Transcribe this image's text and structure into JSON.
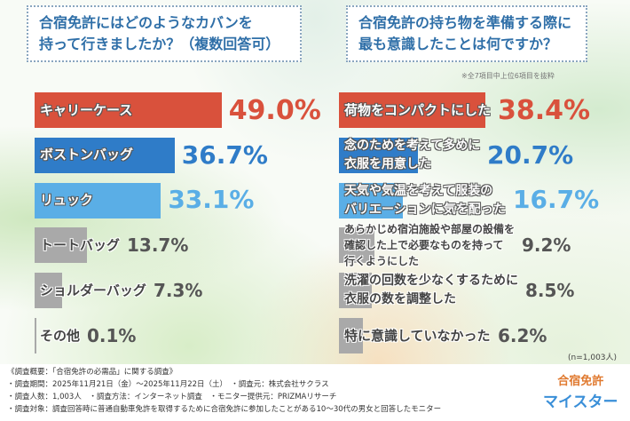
{
  "colors": {
    "top1": "#d9513c",
    "top2": "#2f7cc8",
    "top3": "#5aaee6",
    "rest": "#a9a9a9"
  },
  "chart_data": [
    {
      "type": "bar",
      "orientation": "horizontal",
      "title": "合宿免許にはどのようなカバンを持って行きましたか？（複数回答可）",
      "categories": [
        "キャリーケース",
        "ボストンバッグ",
        "リュック",
        "トートバッグ",
        "ショルダーバッグ",
        "その他"
      ],
      "values": [
        49.0,
        36.7,
        33.1,
        13.7,
        7.3,
        0.1
      ],
      "labels": [
        "49.0%",
        "36.7%",
        "33.1%",
        "13.7%",
        "7.3%",
        "0.1%"
      ],
      "unit": "%"
    },
    {
      "type": "bar",
      "orientation": "horizontal",
      "title": "合宿免許の持ち物を準備する際に最も意識したことは何ですか？",
      "note": "※全7項目中上位6項目を抜粋",
      "categories": [
        "荷物をコンパクトにした",
        "念のためを考えて多めに衣服を用意した",
        "天気や気温を考えて服装のバリエーションに気を配った",
        "あらかじめ宿泊施設や部屋の設備を確認した上で必要なものを持って行くようにした",
        "洗濯の回数を少なくするために衣服の数を調整した",
        "特に意識していなかった"
      ],
      "values": [
        38.4,
        20.7,
        16.7,
        9.2,
        8.5,
        6.2
      ],
      "labels": [
        "38.4%",
        "20.7%",
        "16.7%",
        "9.2%",
        "8.5%",
        "6.2%"
      ],
      "unit": "%",
      "n": "(n=1,003人)"
    }
  ],
  "display_lines": [
    [
      "キャリーケース",
      "ボストンバッグ",
      "リュック",
      "トートバッグ",
      "ショルダーバッグ",
      "その他"
    ],
    [
      "荷物をコンパクトにした",
      "念のためを考えて多めに\n衣服を用意した",
      "天気や気温を考えて服装の\nバリエーションに気を配った",
      "あらかじめ宿泊施設や部屋の設備を\n確認した上で必要なものを持って\n行くようにした",
      "洗濯の回数を少なくするために\n衣服の数を調整した",
      "特に意識していなかった"
    ]
  ],
  "q1_line1": "合宿免許にはどのようなカバンを",
  "q1_line2": "持って行きましたか？（複数回答可）",
  "q2_line1": "合宿免許の持ち物を準備する際に",
  "q2_line2": "最も意識したことは何ですか？",
  "footer": [
    "《調査概要：「合宿免許の必需品」に関する調査》",
    "・調査期間：2025年11月21日（金）～2025年11月22日（土）　・調査元：株式会社サクラス",
    "・調査人数：1,003人　・調査方法：インターネット調査　・モニター提供元：PRIZMAリサーチ",
    "・調査対象：調査回答時に普通自動車免許を取得するために合宿免許に参加したことがある10～30代の男女と回答したモニター"
  ],
  "logo": {
    "line1": "合宿免許",
    "line2": "マイスター"
  }
}
